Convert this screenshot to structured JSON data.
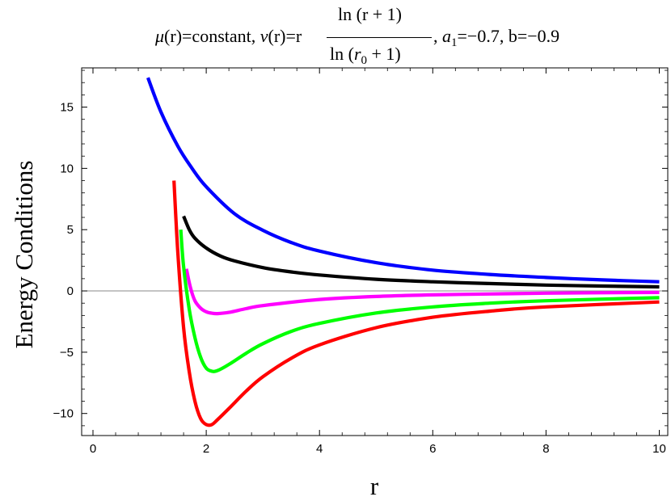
{
  "title": {
    "mu_symbol": "μ",
    "mu_part": "(r)=constant, ",
    "nu_symbol": "ν",
    "nu_part": "(r)=r",
    "numerator": "ln (r + 1)",
    "denominator_ln": "ln (",
    "denominator_var": "r",
    "denominator_sub": "0",
    "denominator_tail": " + 1)",
    "a_comma": ",",
    "a_symbol": "a",
    "a_sub": "1",
    "a_value": "=−0.7, b=−0.9"
  },
  "chart_data": {
    "type": "line",
    "title": "μ(r)=constant, ν(r)=r ln(r+1)/ln(r0+1), a1=−0.7, b=−0.9",
    "xlabel": "r",
    "ylabel": "Energy Conditions",
    "xlim": [
      -0.2,
      10.15
    ],
    "ylim": [
      -11.8,
      18.2
    ],
    "xticks": [
      0,
      2,
      4,
      6,
      8,
      10
    ],
    "yticks": [
      -10,
      -5,
      0,
      5,
      10,
      15
    ],
    "xtick_labels": [
      "0",
      "2",
      "4",
      "6",
      "8",
      "10"
    ],
    "ytick_labels": [
      "−10",
      "−5",
      "0",
      "5",
      "10",
      "15"
    ],
    "grid": false,
    "zero_line": true,
    "series": [
      {
        "color": "#0000ff",
        "x": [
          0.97,
          1.2,
          1.5,
          1.75,
          2.0,
          2.5,
          3.0,
          3.5,
          4.0,
          5.0,
          6.0,
          7.0,
          8.0,
          9.0,
          10.0
        ],
        "y": [
          17.4,
          14.6,
          11.8,
          10.0,
          8.5,
          6.3,
          4.95,
          3.95,
          3.25,
          2.3,
          1.7,
          1.35,
          1.1,
          0.9,
          0.75
        ]
      },
      {
        "color": "#000000",
        "x": [
          1.6,
          1.7,
          1.8,
          2.0,
          2.25,
          2.5,
          3.0,
          3.5,
          4.0,
          5.0,
          6.0,
          7.0,
          8.0,
          9.0,
          10.0
        ],
        "y": [
          6.1,
          5.0,
          4.3,
          3.5,
          2.85,
          2.45,
          1.9,
          1.55,
          1.3,
          0.95,
          0.75,
          0.6,
          0.48,
          0.4,
          0.33
        ]
      },
      {
        "color": "#ff00ff",
        "x": [
          1.65,
          1.72,
          1.8,
          1.9,
          2.0,
          2.1,
          2.2,
          2.4,
          2.7,
          3.0,
          4.0,
          5.0,
          6.0,
          7.0,
          8.0,
          10.0
        ],
        "y": [
          1.8,
          0.3,
          -0.8,
          -1.4,
          -1.7,
          -1.82,
          -1.85,
          -1.75,
          -1.45,
          -1.2,
          -0.7,
          -0.45,
          -0.32,
          -0.25,
          -0.18,
          -0.12
        ]
      },
      {
        "color": "#00ff00",
        "x": [
          1.55,
          1.6,
          1.7,
          1.8,
          1.9,
          2.0,
          2.1,
          2.2,
          2.4,
          2.7,
          3.0,
          3.5,
          4.0,
          5.0,
          6.0,
          7.0,
          8.0,
          10.0
        ],
        "y": [
          5.0,
          2.0,
          -1.5,
          -3.8,
          -5.4,
          -6.3,
          -6.55,
          -6.5,
          -6.0,
          -5.1,
          -4.3,
          -3.3,
          -2.65,
          -1.8,
          -1.3,
          -1.0,
          -0.8,
          -0.55
        ]
      },
      {
        "color": "#ff0000",
        "x": [
          1.43,
          1.5,
          1.6,
          1.7,
          1.8,
          1.9,
          2.0,
          2.1,
          2.2,
          2.4,
          2.7,
          3.0,
          3.5,
          4.0,
          5.0,
          6.0,
          7.0,
          8.0,
          10.0
        ],
        "y": [
          9.0,
          3.0,
          -3.0,
          -6.6,
          -9.0,
          -10.4,
          -10.9,
          -10.9,
          -10.5,
          -9.6,
          -8.2,
          -7.0,
          -5.5,
          -4.4,
          -3.0,
          -2.15,
          -1.65,
          -1.3,
          -0.9
        ]
      }
    ]
  }
}
